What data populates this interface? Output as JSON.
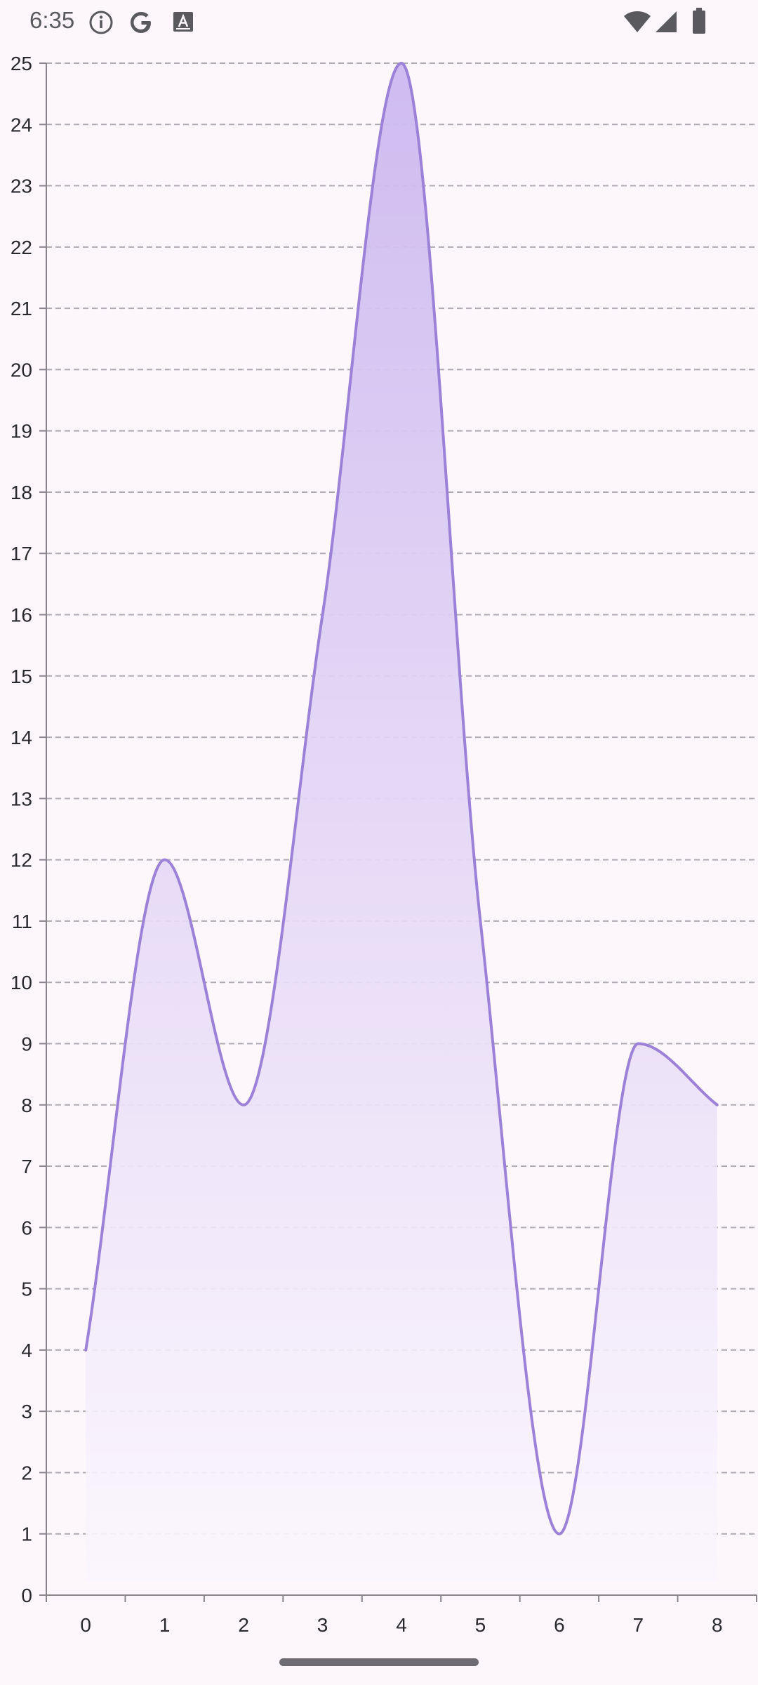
{
  "status_bar": {
    "time": "6:35",
    "icons_left": [
      "info-icon",
      "google-icon",
      "accessibility-text-icon"
    ],
    "icons_right": [
      "wifi-icon",
      "cell-signal-icon",
      "battery-icon"
    ]
  },
  "colors": {
    "line": "#9d81d8",
    "fill_top": "#cdb8ef",
    "fill_bottom": "#fbf6fd",
    "grid": "#b0aab3",
    "axis": "#8a858d",
    "background": "#fdf7fc"
  },
  "chart_data": {
    "type": "area",
    "title": "",
    "xlabel": "",
    "ylabel": "",
    "x": [
      0,
      1,
      2,
      3,
      4,
      5,
      6,
      7,
      8
    ],
    "series": [
      {
        "values": [
          4,
          12,
          8,
          16,
          25,
          11,
          1,
          9,
          8
        ]
      }
    ],
    "xlim": [
      -0.5,
      8.5
    ],
    "ylim": [
      0,
      25
    ],
    "x_ticks": [
      "0",
      "1",
      "2",
      "3",
      "4",
      "5",
      "6",
      "7",
      "8"
    ],
    "y_ticks": [
      "0",
      "1",
      "2",
      "3",
      "4",
      "5",
      "6",
      "7",
      "8",
      "9",
      "10",
      "11",
      "12",
      "13",
      "14",
      "15",
      "16",
      "17",
      "18",
      "19",
      "20",
      "21",
      "22",
      "23",
      "24",
      "25"
    ],
    "curve": "smooth",
    "grid": "horizontal-dashed",
    "legend": "none"
  }
}
